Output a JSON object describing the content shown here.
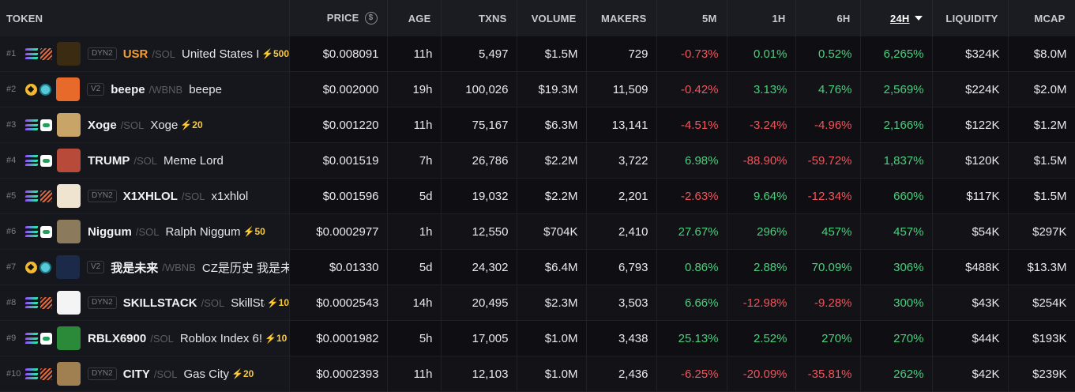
{
  "headers": {
    "token": "TOKEN",
    "price": "PRICE",
    "age": "AGE",
    "txns": "TXNS",
    "volume": "VOLUME",
    "makers": "MAKERS",
    "m5": "5M",
    "h1": "1H",
    "h6": "6H",
    "h24": "24H",
    "liquidity": "LIQUIDITY",
    "mcap": "MCAP"
  },
  "colors": {
    "positive": "#4bcf7e",
    "negative": "#f2545b",
    "boost": "#f7c842",
    "highlight_symbol": "#f49b2f"
  },
  "rows": [
    {
      "rank": "#1",
      "chain": "solana-icon",
      "dex": "orbit",
      "badge": "DYN2",
      "symbol": "USR",
      "quote": "/SOL",
      "name": "United States I",
      "boost": "⚡500",
      "price": "$0.008091",
      "age": "11h",
      "txns": "5,497",
      "volume": "$1.5M",
      "makers": "729",
      "m5": "-0.73%",
      "h1": "0.01%",
      "h6": "0.52%",
      "h24": "6,265%",
      "liquidity": "$324K",
      "mcap": "$8.0M",
      "avatar": "#3a2b12"
    },
    {
      "rank": "#2",
      "chain": "bnb-icon",
      "dex": "pancake",
      "badge": "V2",
      "symbol": "beepe",
      "quote": "/WBNB",
      "name": "beepe",
      "boost": "",
      "price": "$0.002000",
      "age": "19h",
      "txns": "100,026",
      "volume": "$19.3M",
      "makers": "11,509",
      "m5": "-0.42%",
      "h1": "3.13%",
      "h6": "4.76%",
      "h24": "2,569%",
      "liquidity": "$224K",
      "mcap": "$2.0M",
      "avatar": "#e86a2a"
    },
    {
      "rank": "#3",
      "chain": "solana-icon",
      "dex": "pump",
      "badge": "",
      "symbol": "Xoge",
      "quote": "/SOL",
      "name": "Xoge",
      "boost": "⚡20",
      "price": "$0.001220",
      "age": "11h",
      "txns": "75,167",
      "volume": "$6.3M",
      "makers": "13,141",
      "m5": "-4.51%",
      "h1": "-3.24%",
      "h6": "-4.96%",
      "h24": "2,166%",
      "liquidity": "$122K",
      "mcap": "$1.2M",
      "avatar": "#c9a469"
    },
    {
      "rank": "#4",
      "chain": "solana-icon",
      "dex": "pump",
      "badge": "",
      "symbol": "TRUMP",
      "quote": "/SOL",
      "name": "Meme Lord",
      "boost": "",
      "price": "$0.001519",
      "age": "7h",
      "txns": "26,786",
      "volume": "$2.2M",
      "makers": "3,722",
      "m5": "6.98%",
      "h1": "-88.90%",
      "h6": "-59.72%",
      "h24": "1,837%",
      "liquidity": "$120K",
      "mcap": "$1.5M",
      "avatar": "#b84a3a"
    },
    {
      "rank": "#5",
      "chain": "solana-icon",
      "dex": "orbit",
      "badge": "DYN2",
      "symbol": "X1XHLOL",
      "quote": "/SOL",
      "name": "x1xhlol",
      "boost": "",
      "price": "$0.001596",
      "age": "5d",
      "txns": "19,032",
      "volume": "$2.2M",
      "makers": "2,201",
      "m5": "-2.63%",
      "h1": "9.64%",
      "h6": "-12.34%",
      "h24": "660%",
      "liquidity": "$117K",
      "mcap": "$1.5M",
      "avatar": "#efe4cf"
    },
    {
      "rank": "#6",
      "chain": "solana-icon",
      "dex": "pump",
      "badge": "",
      "symbol": "Niggum",
      "quote": "/SOL",
      "name": "Ralph Niggum",
      "boost": "⚡50",
      "price": "$0.0002977",
      "age": "1h",
      "txns": "12,550",
      "volume": "$704K",
      "makers": "2,410",
      "m5": "27.67%",
      "h1": "296%",
      "h6": "457%",
      "h24": "457%",
      "liquidity": "$54K",
      "mcap": "$297K",
      "avatar": "#8c7a5c"
    },
    {
      "rank": "#7",
      "chain": "bnb-icon",
      "dex": "pancake",
      "badge": "V2",
      "symbol": "我是未来",
      "quote": "/WBNB",
      "name": "CZ是历史 我是未:",
      "boost": "",
      "price": "$0.01330",
      "age": "5d",
      "txns": "24,302",
      "volume": "$6.4M",
      "makers": "6,793",
      "m5": "0.86%",
      "h1": "2.88%",
      "h6": "70.09%",
      "h24": "306%",
      "liquidity": "$488K",
      "mcap": "$13.3M",
      "avatar": "#1c2a4a"
    },
    {
      "rank": "#8",
      "chain": "solana-icon",
      "dex": "orbit",
      "badge": "DYN2",
      "symbol": "SKILLSTACK",
      "quote": "/SOL",
      "name": "SkillStac",
      "boost": "⚡10",
      "price": "$0.0002543",
      "age": "14h",
      "txns": "20,495",
      "volume": "$2.3M",
      "makers": "3,503",
      "m5": "6.66%",
      "h1": "-12.98%",
      "h6": "-9.28%",
      "h24": "300%",
      "liquidity": "$43K",
      "mcap": "$254K",
      "avatar": "#f4f4f4"
    },
    {
      "rank": "#9",
      "chain": "solana-icon",
      "dex": "pump",
      "badge": "",
      "symbol": "RBLX6900",
      "quote": "/SOL",
      "name": "Roblox Index 6!",
      "boost": "⚡10",
      "price": "$0.0001982",
      "age": "5h",
      "txns": "17,005",
      "volume": "$1.0M",
      "makers": "3,438",
      "m5": "25.13%",
      "h1": "2.52%",
      "h6": "270%",
      "h24": "270%",
      "liquidity": "$44K",
      "mcap": "$193K",
      "avatar": "#2a8a3a"
    },
    {
      "rank": "#10",
      "chain": "solana-icon",
      "dex": "orbit",
      "badge": "DYN2",
      "symbol": "CITY",
      "quote": "/SOL",
      "name": "Gas City",
      "boost": "⚡20",
      "price": "$0.0002393",
      "age": "11h",
      "txns": "12,103",
      "volume": "$1.0M",
      "makers": "2,436",
      "m5": "-6.25%",
      "h1": "-20.09%",
      "h6": "-35.81%",
      "h24": "262%",
      "liquidity": "$42K",
      "mcap": "$239K",
      "avatar": "#a08050"
    }
  ]
}
